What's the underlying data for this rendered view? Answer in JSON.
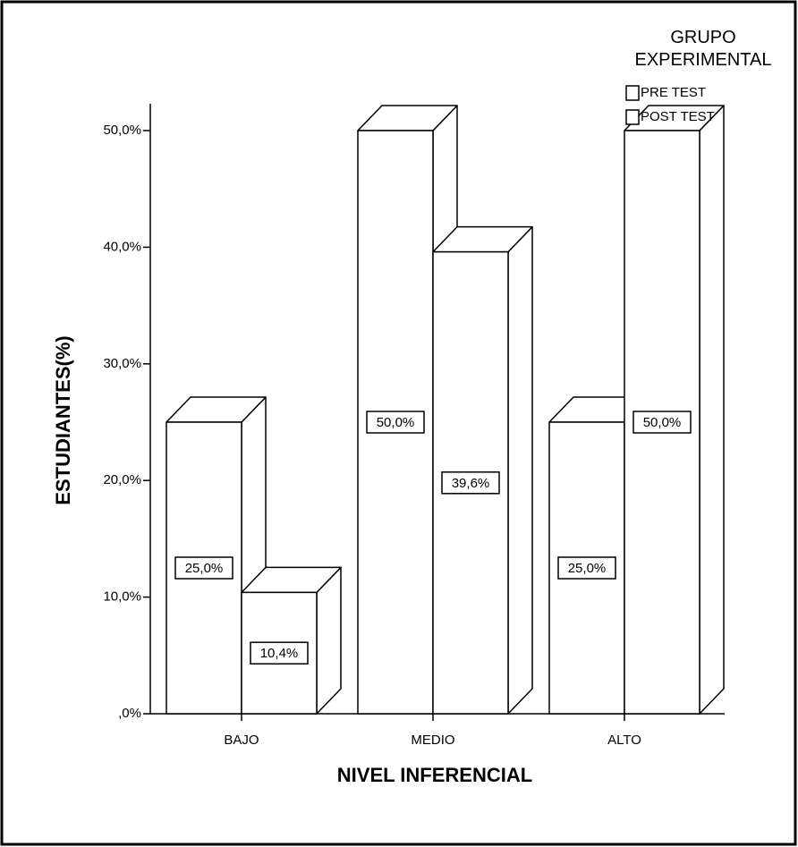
{
  "chart_data": {
    "type": "bar3d",
    "x_label": "NIVEL INFERENCIAL",
    "y_label": "ESTUDIANTES(%)",
    "legend_title": "GRUPO EXPERIMENTAL",
    "categories": [
      "BAJO",
      "MEDIO",
      "ALTO"
    ],
    "series": [
      {
        "name": "PRE TEST",
        "color": "#ffffff",
        "values": [
          25,
          50,
          25
        ],
        "value_labels": [
          "25,0%",
          "50,0%",
          "25,0%"
        ]
      },
      {
        "name": "POST TEST",
        "color": "#ffffff",
        "values": [
          10.4,
          39.6,
          50
        ],
        "value_labels": [
          "10,4%",
          "39,6%",
          "50,0%"
        ]
      }
    ],
    "ylim": [
      0,
      50
    ],
    "yticks": [
      {
        "value": 0,
        "label": ",0%"
      },
      {
        "value": 10,
        "label": "10,0%"
      },
      {
        "value": 20,
        "label": "20,0%"
      },
      {
        "value": 30,
        "label": "30,0%"
      },
      {
        "value": 40,
        "label": "40,0%"
      },
      {
        "value": 50,
        "label": "50,0%"
      }
    ],
    "legend": "top-right"
  }
}
